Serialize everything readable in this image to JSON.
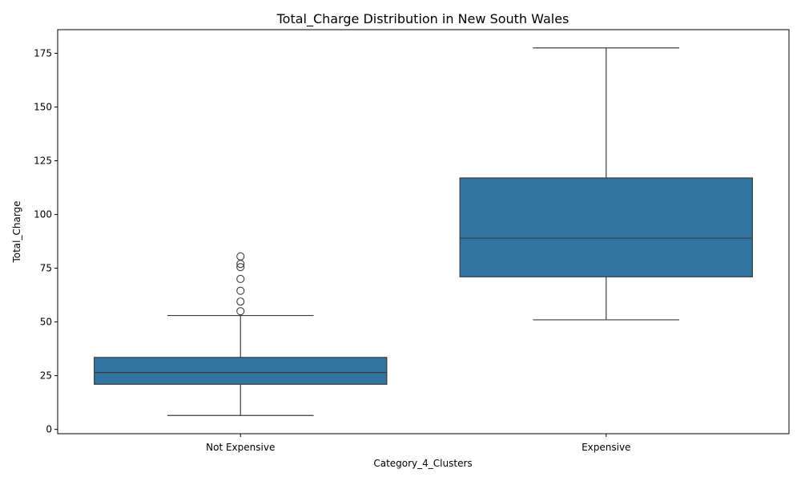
{
  "chart_data": {
    "type": "box",
    "title": "Total_Charge Distribution in New South Wales",
    "xlabel": "Category_4_Clusters",
    "ylabel": "Total_Charge",
    "ylim": [
      -2,
      186
    ],
    "yticks": [
      0,
      25,
      50,
      75,
      100,
      125,
      150,
      175
    ],
    "grid": false,
    "color": "#3274a1",
    "categories": [
      "Not Expensive",
      "Expensive"
    ],
    "boxes": [
      {
        "category": "Not Expensive",
        "whisker_low": 6.5,
        "q1": 21,
        "median": 26.5,
        "q3": 33.5,
        "whisker_high": 53,
        "outliers": [
          55,
          59.5,
          64.5,
          70,
          75.5,
          77,
          80.5
        ]
      },
      {
        "category": "Expensive",
        "whisker_low": 51,
        "q1": 71,
        "median": 89,
        "q3": 117,
        "whisker_high": 177.5,
        "outliers": []
      }
    ]
  }
}
